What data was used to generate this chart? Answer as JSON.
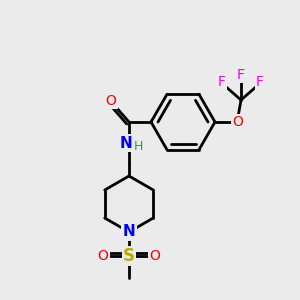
{
  "bg_color": "#ebebeb",
  "bond_color": "#000000",
  "bond_width": 2.0,
  "figsize": [
    3.0,
    3.0
  ],
  "dpi": 100,
  "colors": {
    "F": "#ee00ee",
    "O": "#ff0000",
    "N": "#0000ee",
    "H": "#3a8f6f",
    "S": "#bbaa00",
    "C": "#000000"
  }
}
